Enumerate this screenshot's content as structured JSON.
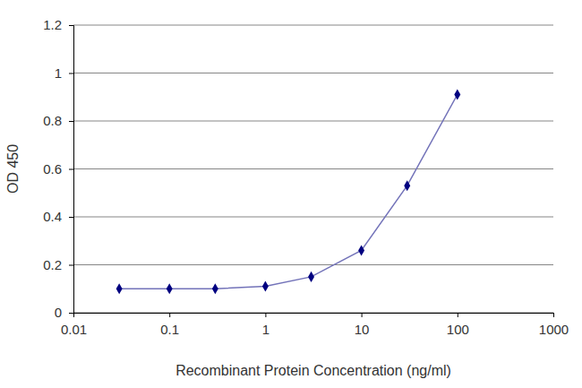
{
  "chart_data": {
    "type": "line",
    "xlabel": "Recombinant Protein Concentration (ng/ml)",
    "ylabel": "OD 450",
    "x": [
      0.03,
      0.1,
      0.3,
      1,
      3,
      10,
      30,
      100
    ],
    "values": [
      0.1,
      0.1,
      0.1,
      0.11,
      0.15,
      0.26,
      0.53,
      0.91
    ],
    "xlim": [
      0.01,
      1000
    ],
    "ylim": [
      0,
      1.2
    ],
    "xticks": [
      0.01,
      0.1,
      1,
      10,
      100,
      1000
    ],
    "yticks": [
      0,
      0.2,
      0.4,
      0.6,
      0.8,
      1,
      1.2
    ],
    "log": "x",
    "grid": true,
    "color": "#000080",
    "marker": "diamond"
  }
}
